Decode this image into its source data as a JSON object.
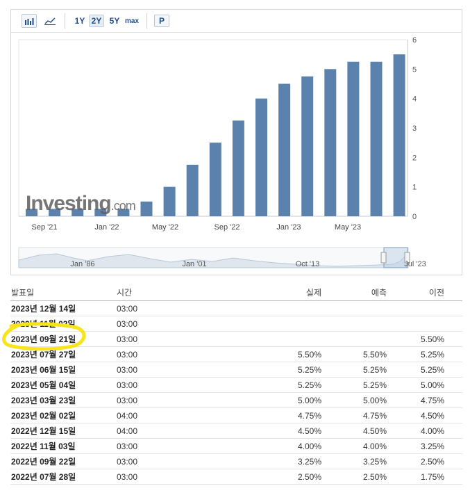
{
  "toolbar": {
    "bar_icon": "bar-chart-icon",
    "line_icon": "line-chart-icon",
    "ranges": [
      "1Y",
      "2Y",
      "5Y",
      "max"
    ],
    "active_range": "2Y",
    "p_label": "P"
  },
  "watermark": "Investing.com",
  "chart_data": {
    "type": "bar",
    "x_ticks": [
      "Sep '21",
      "Jan '22",
      "May '22",
      "Sep '22",
      "Jan '23",
      "May '23"
    ],
    "y_ticks": [
      "0",
      "1",
      "2",
      "3",
      "4",
      "5",
      "6"
    ],
    "ylim": [
      0,
      6
    ],
    "values": [
      0.25,
      0.25,
      0.25,
      0.25,
      0.25,
      0.5,
      1.0,
      1.75,
      2.5,
      3.25,
      4.0,
      4.5,
      4.75,
      5.0,
      5.25,
      5.25,
      5.5
    ],
    "color": "#5b82ad",
    "grid": false,
    "navigator_labels": [
      "Jan '86",
      "Jan '01",
      "Oct '13",
      "Jul '23"
    ]
  },
  "table": {
    "headers": {
      "date": "발표일",
      "time": "시간",
      "actual": "실제",
      "forecast": "예측",
      "previous": "이전"
    },
    "rows": [
      {
        "date": "2023년 12월 14일",
        "time": "03:00",
        "actual": "",
        "forecast": "",
        "previous": ""
      },
      {
        "date": "2023년 11월 02일",
        "time": "03:00",
        "actual": "",
        "forecast": "",
        "previous": ""
      },
      {
        "date": "2023년 09월 21일",
        "time": "03:00",
        "actual": "",
        "forecast": "",
        "previous": "5.50%"
      },
      {
        "date": "2023년 07월 27일",
        "time": "03:00",
        "actual": "5.50%",
        "forecast": "5.50%",
        "previous": "5.25%"
      },
      {
        "date": "2023년 06월 15일",
        "time": "03:00",
        "actual": "5.25%",
        "forecast": "5.25%",
        "previous": "5.25%"
      },
      {
        "date": "2023년 05월 04일",
        "time": "03:00",
        "actual": "5.25%",
        "forecast": "5.25%",
        "previous": "5.00%"
      },
      {
        "date": "2023년 03월 23일",
        "time": "03:00",
        "actual": "5.00%",
        "forecast": "5.00%",
        "previous": "4.75%"
      },
      {
        "date": "2023년 02월 02일",
        "time": "04:00",
        "actual": "4.75%",
        "forecast": "4.75%",
        "previous": "4.50%"
      },
      {
        "date": "2022년 12월 15일",
        "time": "04:00",
        "actual": "4.50%",
        "forecast": "4.50%",
        "previous": "4.00%"
      },
      {
        "date": "2022년 11월 03일",
        "time": "03:00",
        "actual": "4.00%",
        "forecast": "4.00%",
        "previous": "3.25%"
      },
      {
        "date": "2022년 09월 22일",
        "time": "03:00",
        "actual": "3.25%",
        "forecast": "3.25%",
        "previous": "2.50%"
      },
      {
        "date": "2022년 07월 28일",
        "time": "03:00",
        "actual": "2.50%",
        "forecast": "2.50%",
        "previous": "1.75%"
      }
    ]
  },
  "annotation": {
    "color": "#f7e41a"
  }
}
